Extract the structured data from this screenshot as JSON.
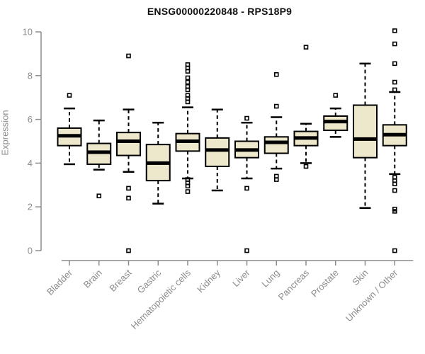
{
  "chart_data": {
    "type": "boxplot",
    "title": "ENSG00000220848 - RPS18P9",
    "xlabel": "",
    "ylabel": "Expression",
    "ylim": [
      0,
      10
    ],
    "yticks": [
      0,
      2,
      4,
      6,
      8,
      10
    ],
    "grid": false,
    "legend": "none",
    "categories": [
      "Bladder",
      "Brain",
      "Breast",
      "Gastric",
      "Hematopoietic cells",
      "Kidney",
      "Liver",
      "Lung",
      "Pancreas",
      "Prostate",
      "Skin",
      "Unknown / Other"
    ],
    "series": [
      {
        "name": "Bladder",
        "whisker_low": 3.95,
        "q1": 4.8,
        "median": 5.25,
        "q3": 5.6,
        "whisker_high": 6.5,
        "outliers": [
          7.1
        ]
      },
      {
        "name": "Brain",
        "whisker_low": 3.7,
        "q1": 3.95,
        "median": 4.5,
        "q3": 4.9,
        "whisker_high": 5.95,
        "outliers": [
          2.5
        ]
      },
      {
        "name": "Breast",
        "whisker_low": 3.6,
        "q1": 4.35,
        "median": 5.0,
        "q3": 5.4,
        "whisker_high": 6.45,
        "outliers": [
          8.9,
          2.85,
          2.4,
          0.0
        ]
      },
      {
        "name": "Gastric",
        "whisker_low": 2.15,
        "q1": 3.2,
        "median": 4.0,
        "q3": 4.85,
        "whisker_high": 5.85,
        "outliers": []
      },
      {
        "name": "Hematopoietic cells",
        "whisker_low": 3.3,
        "q1": 4.55,
        "median": 5.0,
        "q3": 5.35,
        "whisker_high": 6.55,
        "outliers": [
          8.5,
          8.35,
          8.2,
          7.9,
          7.7,
          7.5,
          7.35,
          7.1,
          6.95,
          6.8,
          3.25,
          3.1,
          2.95,
          2.7
        ]
      },
      {
        "name": "Kidney",
        "whisker_low": 2.75,
        "q1": 3.85,
        "median": 4.6,
        "q3": 5.15,
        "whisker_high": 6.45,
        "outliers": []
      },
      {
        "name": "Liver",
        "whisker_low": 3.3,
        "q1": 4.25,
        "median": 4.6,
        "q3": 5.0,
        "whisker_high": 5.85,
        "outliers": [
          6.05,
          2.85,
          0.0
        ]
      },
      {
        "name": "Lung",
        "whisker_low": 3.75,
        "q1": 4.45,
        "median": 4.95,
        "q3": 5.2,
        "whisker_high": 6.1,
        "outliers": [
          8.05,
          6.6,
          3.4,
          3.25
        ]
      },
      {
        "name": "Pancreas",
        "whisker_low": 4.0,
        "q1": 4.8,
        "median": 5.15,
        "q3": 5.45,
        "whisker_high": 5.8,
        "outliers": [
          9.3,
          3.85
        ]
      },
      {
        "name": "Prostate",
        "whisker_low": 5.2,
        "q1": 5.5,
        "median": 5.9,
        "q3": 6.15,
        "whisker_high": 6.5,
        "outliers": [
          7.1
        ]
      },
      {
        "name": "Skin",
        "whisker_low": 1.95,
        "q1": 4.25,
        "median": 5.1,
        "q3": 6.65,
        "whisker_high": 8.55,
        "outliers": []
      },
      {
        "name": "Unknown / Other",
        "whisker_low": 3.5,
        "q1": 4.8,
        "median": 5.3,
        "q3": 5.75,
        "whisker_high": 7.25,
        "outliers": [
          10.05,
          9.45,
          8.55,
          7.7,
          7.35,
          3.35,
          3.2,
          3.05,
          2.75,
          1.9,
          1.8,
          0.0
        ]
      }
    ],
    "colors": {
      "box_fill": "#EDE7CC",
      "box_stroke": "#000000",
      "median": "#000000",
      "whisker": "#000000",
      "outlier_stroke": "#000000",
      "axis_line": "#8c8c8c",
      "axis_text": "#8c8c8c",
      "title_text": "#111111",
      "background": "#ffffff"
    }
  }
}
